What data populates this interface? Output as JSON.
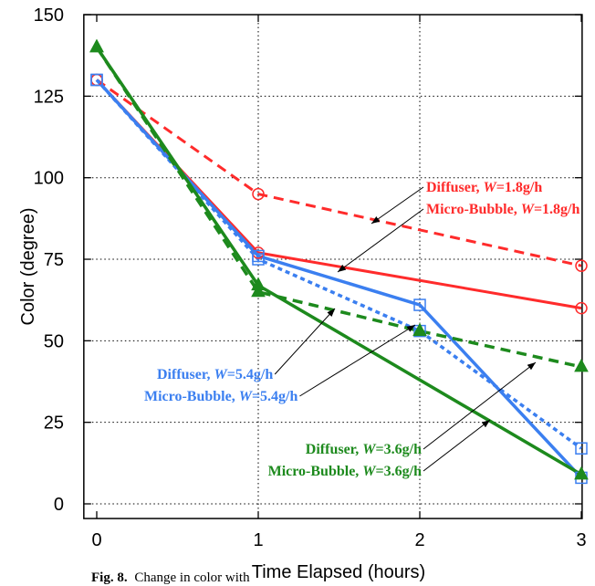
{
  "caption": {
    "label": "Fig. 8.",
    "text": "Change in color with time"
  },
  "chart_data": {
    "type": "line",
    "xlabel": "Time Elapsed (hours)",
    "ylabel": "Color (degree)",
    "xlim": [
      -0.08,
      3.005
    ],
    "ylim": [
      -4.5,
      150
    ],
    "xticks": [
      0,
      1,
      2,
      3
    ],
    "yticks": [
      0,
      25,
      50,
      75,
      100,
      125,
      150
    ],
    "grid": true,
    "series": [
      {
        "name": "Diffuser, W=1.8g/h",
        "color": "#ff2b2b",
        "line": "dashed",
        "marker": "open-circle",
        "x": [
          0,
          1,
          3
        ],
        "y": [
          130,
          95,
          73
        ]
      },
      {
        "name": "Micro-Bubble, W=1.8g/h",
        "color": "#ff2b2b",
        "line": "solid",
        "marker": "open-circle",
        "x": [
          0,
          1,
          3
        ],
        "y": [
          130,
          77,
          60
        ]
      },
      {
        "name": "Diffuser, W=5.4g/h",
        "color": "#3b7ff0",
        "line": "dotted",
        "marker": "open-square",
        "x": [
          0,
          1,
          2,
          3
        ],
        "y": [
          130,
          75,
          53,
          17
        ]
      },
      {
        "name": "Micro-Bubble, W=5.4g/h",
        "color": "#3b7ff0",
        "line": "solid",
        "marker": "open-square",
        "x": [
          0,
          1,
          2,
          3
        ],
        "y": [
          130,
          76,
          61,
          8
        ]
      },
      {
        "name": "Diffuser, W=3.6g/h",
        "color": "#1d8a1d",
        "line": "dashed",
        "marker": "filled-triangle",
        "x": [
          0,
          1,
          2,
          3
        ],
        "y": [
          140,
          65,
          53,
          42
        ]
      },
      {
        "name": "Micro-Bubble, W=3.6g/h",
        "color": "#1d8a1d",
        "line": "solid",
        "marker": "filled-triangle",
        "x": [
          0,
          1,
          3
        ],
        "y": [
          140,
          67,
          9
        ]
      }
    ]
  }
}
